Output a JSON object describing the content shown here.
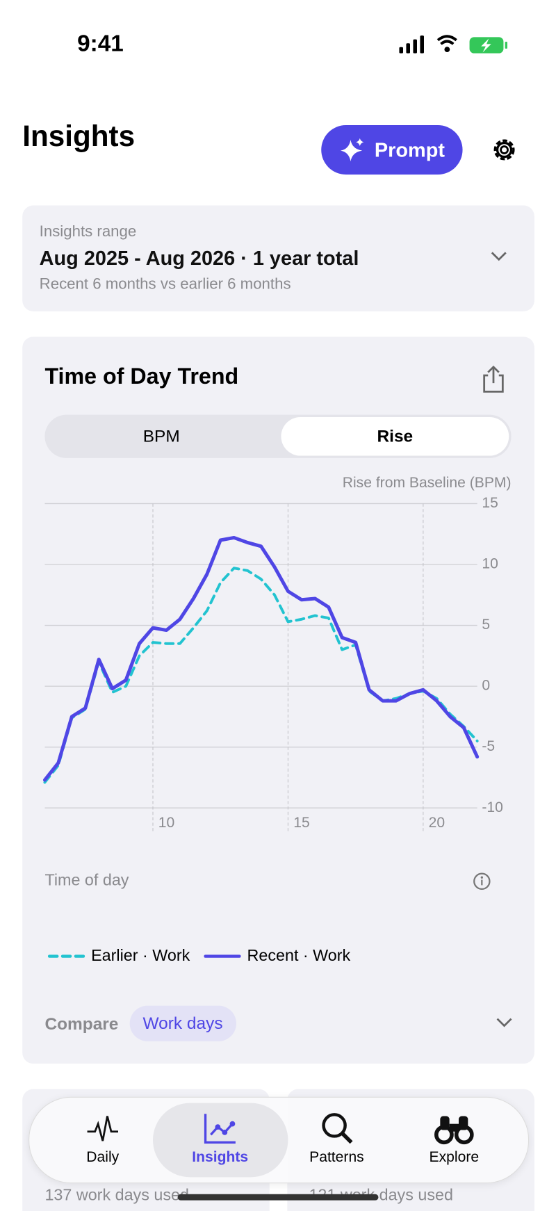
{
  "status": {
    "time": "9:41"
  },
  "header": {
    "title": "Insights",
    "prompt_button": "Prompt"
  },
  "range": {
    "label": "Insights range",
    "value": "Aug 2025 - Aug 2026 · 1 year total",
    "sub": "Recent 6 months vs earlier 6 months"
  },
  "card": {
    "title": "Time of Day Trend",
    "segments": [
      "BPM",
      "Rise"
    ]
  },
  "chart": {
    "type": "line",
    "y_axis_label": "Rise from Baseline (BPM)",
    "x_axis_label": "Time of day",
    "x": [
      6,
      6.5,
      7,
      7.5,
      8,
      8.5,
      9,
      9.5,
      10,
      10.5,
      11,
      11.5,
      12,
      12.5,
      13,
      13.5,
      14,
      14.5,
      15,
      15.5,
      16,
      16.5,
      17,
      17.5,
      18,
      18.5,
      19,
      19.5,
      20,
      20.5,
      21,
      21.5,
      22
    ],
    "series": [
      {
        "name": "Earlier · Work",
        "color": "#22c3d0",
        "dashed": true,
        "values": [
          -7.9,
          -6.5,
          -2.6,
          -1.9,
          2.0,
          -0.5,
          0,
          2.5,
          3.6,
          3.5,
          3.5,
          4.8,
          6.2,
          8.5,
          9.7,
          9.5,
          8.8,
          7.5,
          5.3,
          5.5,
          5.8,
          5.6,
          3.0,
          3.4,
          -0.4,
          -1.2,
          -1.0,
          -0.6,
          -0.4,
          -1.0,
          -2.3,
          -3.3,
          -4.5
        ]
      },
      {
        "name": "Recent · Work",
        "color": "#4f46e5",
        "dashed": false,
        "values": [
          -7.7,
          -6.3,
          -2.5,
          -1.8,
          2.2,
          -0.2,
          0.5,
          3.5,
          4.8,
          4.6,
          5.5,
          7.2,
          9.2,
          12.0,
          12.2,
          11.8,
          11.5,
          9.8,
          7.8,
          7.1,
          7.2,
          6.5,
          4.0,
          3.6,
          -0.3,
          -1.2,
          -1.2,
          -0.6,
          -0.3,
          -1.2,
          -2.5,
          -3.4,
          -5.8
        ]
      }
    ],
    "xlim": [
      6,
      22
    ],
    "ylim": [
      -10,
      15
    ],
    "xticks": [
      10,
      15,
      20
    ],
    "yticks": [
      15,
      10,
      5,
      0,
      -5,
      -10
    ],
    "grid": true
  },
  "compare": {
    "label": "Compare",
    "chip": "Work days"
  },
  "summary": [
    "137 work days used",
    "121 work days used"
  ],
  "tabs": [
    "Daily",
    "Insights",
    "Patterns",
    "Explore"
  ]
}
